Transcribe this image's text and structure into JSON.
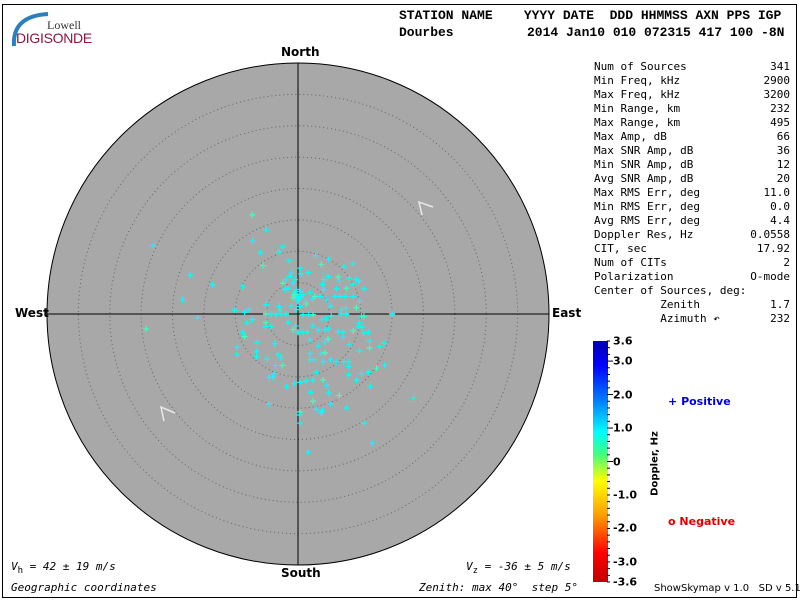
{
  "logo": {
    "line1": "Lowell",
    "line2": "DIGISONDE"
  },
  "header": {
    "labels": "STATION NAME    YYYY DATE  DDD HHMMSS AXN PPS IGP",
    "station": "Dourbes",
    "values": "2014 Jan10 010 072315 417 100 -8N"
  },
  "directions": {
    "north": "North",
    "south": "South",
    "east": "East",
    "west": "West"
  },
  "stats": [
    {
      "label": "Num of Sources",
      "value": "341"
    },
    {
      "label": "Min Freq, kHz",
      "value": "2900"
    },
    {
      "label": "Max Freq, kHz",
      "value": "3200"
    },
    {
      "label": "Min Range, km",
      "value": "232"
    },
    {
      "label": "Max Range, km",
      "value": "495"
    },
    {
      "label": "Max Amp, dB",
      "value": "66"
    },
    {
      "label": "Max SNR Amp, dB",
      "value": "36"
    },
    {
      "label": "Min SNR Amp, dB",
      "value": "12"
    },
    {
      "label": "Avg SNR Amp, dB",
      "value": "20"
    },
    {
      "label": "Max RMS Err, deg",
      "value": "11.0"
    },
    {
      "label": "Min RMS Err, deg",
      "value": "0.0"
    },
    {
      "label": "Avg RMS Err, deg",
      "value": "4.4"
    },
    {
      "label": "Doppler Res, Hz",
      "value": "0.0558"
    },
    {
      "label": "CIT, sec",
      "value": "17.92"
    },
    {
      "label": "Num of CITs",
      "value": "2"
    },
    {
      "label": "Polarization",
      "value": "O-mode"
    },
    {
      "label": "Center of Sources, deg:",
      "value": ""
    },
    {
      "label": "          Zenith",
      "value": "1.7"
    },
    {
      "label": "          Azimuth ↶",
      "value": "232"
    }
  ],
  "colorbar": {
    "title": "Doppler, Hz",
    "ticks": [
      "3.6",
      "3.0",
      "2.0",
      "1.0",
      "0",
      "-1.0",
      "-2.0",
      "-3.0",
      "-3.6"
    ],
    "tick_values": [
      3.6,
      3.0,
      2.0,
      1.0,
      0,
      -1.0,
      -2.0,
      -3.0,
      -3.6
    ],
    "range": [
      -3.6,
      3.6
    ]
  },
  "legend": {
    "positive": "Positive",
    "negative": "Negative",
    "positive_symbol": "+",
    "negative_symbol": "o",
    "positive_color": "#0000dd",
    "negative_color": "#dd0000"
  },
  "footer": {
    "vh": "V",
    "vh_sub": "h",
    "vh_value": " = 42 ± 19 m/s",
    "vz": "V",
    "vz_sub": "z",
    "vz_value": " = -36 ± 5 m/s",
    "coords": "Geographic coordinates",
    "zenith": "Zenith: max 40°  step 5°",
    "version": "ShowSkymap v 1.0   SD v 5.1"
  },
  "skymap": {
    "max_zenith_deg": 40,
    "step_deg": 5,
    "background": "#a8a8a8",
    "source_color": "#00ffff",
    "velocity_arrow_azimuths_deg": [
      45,
      225
    ],
    "sources_east_north_deg": [
      [
        -7.3,
        15.8
      ],
      [
        -5.1,
        13.4
      ],
      [
        -7.2,
        11.6
      ],
      [
        -23.1,
        10.9
      ],
      [
        -6.0,
        9.7
      ],
      [
        -3.0,
        9.9
      ],
      [
        -2.4,
        10.7
      ],
      [
        -5.6,
        7.7
      ],
      [
        -1.4,
        8.5
      ],
      [
        -17.2,
        6.2
      ],
      [
        -13.6,
        4.6
      ],
      [
        -18.4,
        2.3
      ],
      [
        -8.8,
        4.3
      ],
      [
        -16.0,
        -0.6
      ],
      [
        -24.2,
        -2.4
      ],
      [
        -10.1,
        0.6
      ],
      [
        -8.5,
        0.3
      ],
      [
        -7.8,
        0.7
      ],
      [
        -7.3,
        -0.9
      ],
      [
        -8.1,
        -1.4
      ],
      [
        -8.8,
        -2.9
      ],
      [
        -8.5,
        -3.6
      ],
      [
        -9.7,
        -5.3
      ],
      [
        -9.7,
        -6.5
      ],
      [
        -6.6,
        -6.0
      ],
      [
        -6.6,
        -6.8
      ],
      [
        -6.5,
        -4.5
      ],
      [
        -4.9,
        -7.2
      ],
      [
        -5.1,
        -1.4
      ],
      [
        -4.3,
        -2.0
      ],
      [
        -5.2,
        -2.0
      ],
      [
        -3.7,
        -4.7
      ],
      [
        -3.2,
        -6.5
      ],
      [
        -2.7,
        -7.0
      ],
      [
        -3.6,
        -8.2
      ],
      [
        -2.5,
        -8.2
      ],
      [
        -3.8,
        -9.5
      ],
      [
        -4.6,
        -10.1
      ],
      [
        -4.0,
        -10.1
      ],
      [
        -4.6,
        -14.3
      ],
      [
        -1.8,
        -11.6
      ],
      [
        -0.6,
        -11.1
      ],
      [
        0.3,
        -15.6
      ],
      [
        0.2,
        -16.1
      ],
      [
        0.3,
        -17.4
      ],
      [
        1.6,
        -22.0
      ],
      [
        0.3,
        -10.9
      ],
      [
        1.3,
        -10.7
      ],
      [
        2.0,
        -12.5
      ],
      [
        2.4,
        -13.9
      ],
      [
        2.9,
        -15.2
      ],
      [
        3.7,
        -15.8
      ],
      [
        3.9,
        -15.4
      ],
      [
        5.1,
        -14.3
      ],
      [
        4.9,
        -12.6
      ],
      [
        4.6,
        -11.4
      ],
      [
        4.0,
        -10.5
      ],
      [
        2.4,
        -10.5
      ],
      [
        2.9,
        -9.3
      ],
      [
        1.9,
        -7.3
      ],
      [
        2.5,
        -7.3
      ],
      [
        1.9,
        -6.3
      ],
      [
        3.7,
        -6.3
      ],
      [
        4.3,
        -6.2
      ],
      [
        4.0,
        -7.6
      ],
      [
        5.2,
        -7.3
      ],
      [
        6.1,
        -7.6
      ],
      [
        7.3,
        -7.6
      ],
      [
        8.1,
        -7.6
      ],
      [
        8.1,
        -8.4
      ],
      [
        6.6,
        -13.0
      ],
      [
        7.8,
        -15.0
      ],
      [
        8.1,
        -9.7
      ],
      [
        9.3,
        -10.5
      ],
      [
        10.1,
        -9.5
      ],
      [
        11.2,
        -9.3
      ],
      [
        11.5,
        -11.6
      ],
      [
        12.5,
        -8.6
      ],
      [
        13.8,
        -8.2
      ],
      [
        10.5,
        -17.4
      ],
      [
        11.8,
        -20.6
      ],
      [
        18.4,
        -13.4
      ],
      [
        13.0,
        -5.2
      ],
      [
        13.7,
        -4.6
      ],
      [
        11.4,
        -5.4
      ],
      [
        9.8,
        -5.9
      ],
      [
        11.4,
        -4.3
      ],
      [
        8.2,
        -4.9
      ],
      [
        7.2,
        -3.7
      ],
      [
        7.2,
        -2.9
      ],
      [
        6.4,
        -2.8
      ],
      [
        8.8,
        -2.7
      ],
      [
        9.6,
        -2.0
      ],
      [
        10.2,
        -2.1
      ],
      [
        10.5,
        -3.0
      ],
      [
        11.2,
        -2.9
      ],
      [
        9.8,
        -1.4
      ],
      [
        10.1,
        -0.4
      ],
      [
        10.5,
        -0.4
      ],
      [
        15.0,
        0
      ],
      [
        7.7,
        0
      ],
      [
        6.9,
        0
      ],
      [
        5.3,
        -0.3
      ],
      [
        4.5,
        -0.8
      ],
      [
        3.8,
        -0.9
      ],
      [
        2.4,
        -0.1
      ],
      [
        1.7,
        -0.1
      ],
      [
        0.8,
        -0.1
      ],
      [
        2.4,
        -1.9
      ],
      [
        3.2,
        -2.5
      ],
      [
        4.3,
        -2.5
      ],
      [
        4.9,
        -2.4
      ],
      [
        4.8,
        -4.0
      ],
      [
        4.3,
        -4.4
      ],
      [
        3.2,
        -5.1
      ],
      [
        1.9,
        -4.1
      ],
      [
        1.5,
        -2.9
      ],
      [
        0.8,
        -2.9
      ],
      [
        0,
        -2.9
      ],
      [
        -0.8,
        -2.5
      ],
      [
        -0.4,
        -1.9
      ],
      [
        -1.6,
        -1.4
      ],
      [
        -1.9,
        0
      ],
      [
        -2.7,
        0
      ],
      [
        -3.5,
        0
      ],
      [
        -4.3,
        0
      ],
      [
        -5.1,
        0
      ],
      [
        -3.0,
        1.2
      ],
      [
        -2.9,
        0.7
      ],
      [
        -5.1,
        1.5
      ],
      [
        -1.1,
        1.3
      ],
      [
        -0.3,
        0.7
      ],
      [
        0.3,
        1.2
      ],
      [
        1.3,
        1.6
      ],
      [
        2.4,
        2.4
      ],
      [
        3.5,
        2.8
      ],
      [
        4.5,
        2.3
      ],
      [
        5.1,
        1.3
      ],
      [
        6.9,
        0.7
      ],
      [
        7.6,
        1.0
      ],
      [
        9.3,
        1.0
      ],
      [
        9.8,
        2.0
      ],
      [
        8.8,
        2.8
      ],
      [
        7.5,
        2.8
      ],
      [
        6.6,
        2.8
      ],
      [
        5.9,
        2.8
      ],
      [
        6.1,
        4.0
      ],
      [
        7.7,
        4.1
      ],
      [
        8.8,
        4.7
      ],
      [
        9.3,
        5.5
      ],
      [
        9.7,
        5.2
      ],
      [
        10.5,
        4.0
      ],
      [
        8.2,
        5.7
      ],
      [
        6.6,
        5.2
      ],
      [
        6.4,
        5.9
      ],
      [
        4.8,
        6.0
      ],
      [
        4.1,
        5.5
      ],
      [
        4.1,
        3.9
      ],
      [
        3.9,
        4.7
      ],
      [
        7.3,
        7.5
      ],
      [
        8.8,
        8.0
      ],
      [
        3.7,
        7.9
      ],
      [
        4.9,
        8.7
      ],
      [
        2.8,
        9.3
      ],
      [
        1.6,
        6.6
      ],
      [
        0.5,
        6.4
      ],
      [
        0.3,
        7.3
      ],
      [
        1.9,
        3.4
      ],
      [
        2.7,
        2.8
      ],
      [
        1.2,
        2.0
      ],
      [
        -0.5,
        3.4
      ],
      [
        0,
        2.8
      ],
      [
        0.5,
        2.6
      ],
      [
        -0.3,
        2.3
      ],
      [
        0.3,
        3.6
      ],
      [
        -0.8,
        2.6
      ],
      [
        0.8,
        3.1
      ],
      [
        0,
        2.0
      ],
      [
        -0.3,
        3.9
      ],
      [
        -1.9,
        5.5
      ],
      [
        -1.3,
        6.0
      ],
      [
        -0.8,
        4.9
      ],
      [
        -2.4,
        4.9
      ],
      [
        -1.6,
        4.1
      ],
      [
        -1.1,
        6.5
      ],
      [
        -2.1,
        3.9
      ],
      [
        -0.5,
        5.5
      ],
      [
        -0.2,
        3.0
      ],
      [
        0.2,
        2.4
      ],
      [
        -0.6,
        3.1
      ]
    ]
  }
}
